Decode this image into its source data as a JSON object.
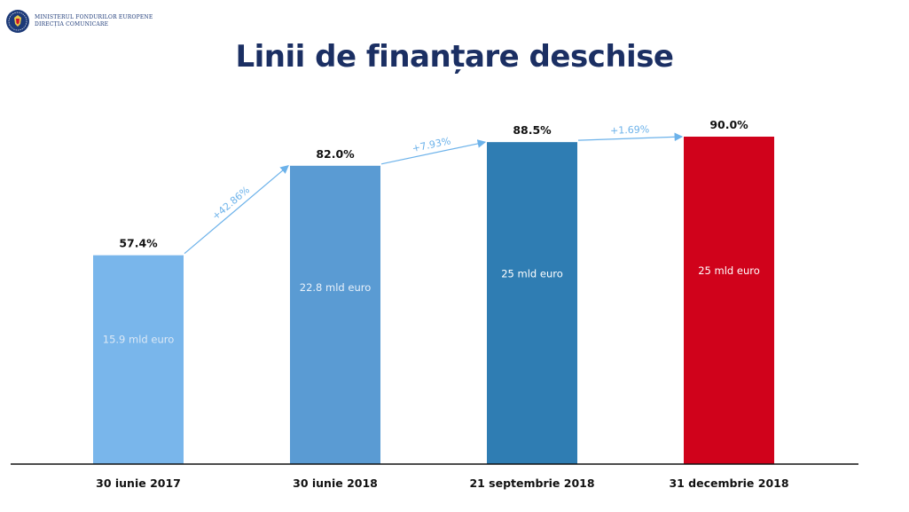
{
  "header": {
    "logo_line1": "Ministerul Fondurilor Europene",
    "logo_line2": "Direcția Comunicare",
    "title": "Linii de finanțare deschise"
  },
  "chart_data": {
    "type": "bar",
    "title": "Linii de finanțare deschise",
    "categories": [
      "30 iunie 2017",
      "30 iunie 2018",
      "21 septembrie 2018",
      "31 decembrie 2018"
    ],
    "values": [
      57.4,
      82.0,
      88.5,
      90.0
    ],
    "value_labels": [
      "57.4%",
      "82.0%",
      "88.5%",
      "90.0%"
    ],
    "inner_labels": [
      "15.9 mld euro",
      "22.8 mld euro",
      "25 mld euro",
      "25 mld euro"
    ],
    "growth_labels": [
      "+42.86%",
      "+7.93%",
      "+1.69%"
    ],
    "bar_colors": [
      "#79b6eb",
      "#5a9bd3",
      "#2f7db3",
      "#d0021b"
    ],
    "inner_label_colors": [
      "#dce9f6",
      "#e8f1fa",
      "#ffffff",
      "#ffffff"
    ],
    "growth_color": "#6cb2ea",
    "ylim": [
      0,
      100
    ],
    "legend": "none",
    "grid": false
  }
}
